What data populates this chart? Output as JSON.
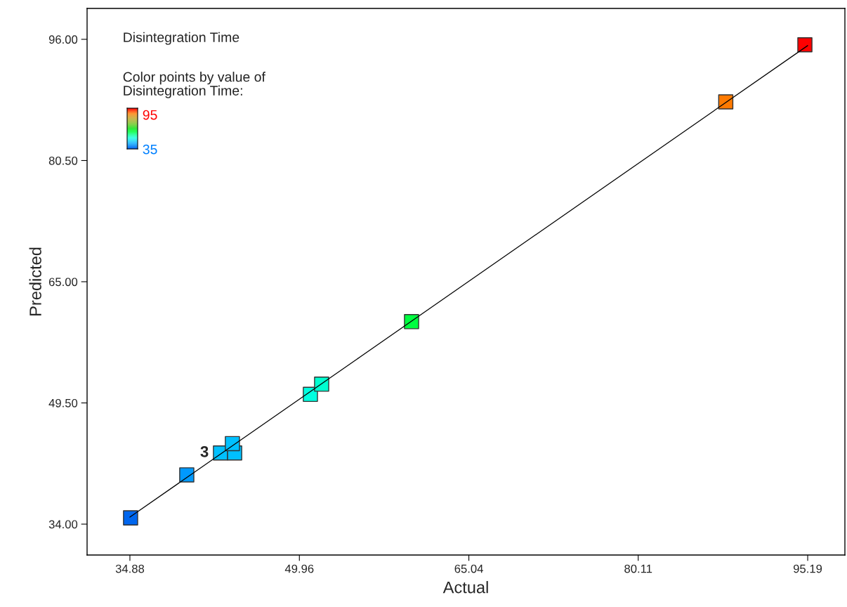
{
  "chart_data": {
    "type": "scatter",
    "title": "Disintegration Time",
    "xlabel": "Actual",
    "ylabel": "Predicted",
    "series": [
      {
        "x": [
          34.94,
          39.94,
          42.94,
          44.2,
          44.0,
          50.94,
          51.94,
          59.94,
          87.9,
          94.94
        ],
        "values": [
          34.8,
          40.3,
          43.1,
          43.1,
          44.3,
          50.6,
          51.9,
          59.9,
          88.0,
          95.3
        ],
        "colors": [
          "#0066ee",
          "#0099ff",
          "#00c0ff",
          "#00c0ff",
          "#00c0ff",
          "#00ffe0",
          "#00ffd0",
          "#00ff40",
          "#ff7a00",
          "#ff0000"
        ],
        "marker": "square"
      },
      {
        "type": "line",
        "x": [
          34.88,
          95.19
        ],
        "values": [
          34.9,
          95.2
        ],
        "color": "#000000",
        "line_style": "solid",
        "marker": "none"
      }
    ],
    "annotations": [
      {
        "text": "3",
        "x": 42.94,
        "y": 43.1
      },
      "Color points by value of\nDisintegration Time:",
      "95",
      "35"
    ],
    "xlim": [
      31.07,
      98.5
    ],
    "ylim": [
      30.05,
      99.95
    ],
    "xticks": [
      34.88,
      49.96,
      65.04,
      80.11,
      95.19
    ],
    "yticks": [
      {
        "value": 34,
        "label": "34.00"
      },
      {
        "value": 49.5,
        "label": "49.50"
      },
      {
        "value": 65,
        "label": "65.00"
      },
      {
        "value": 80.5,
        "label": "80.50"
      },
      {
        "value": 96,
        "label": "96.00"
      }
    ],
    "grid": false,
    "legend": false
  }
}
